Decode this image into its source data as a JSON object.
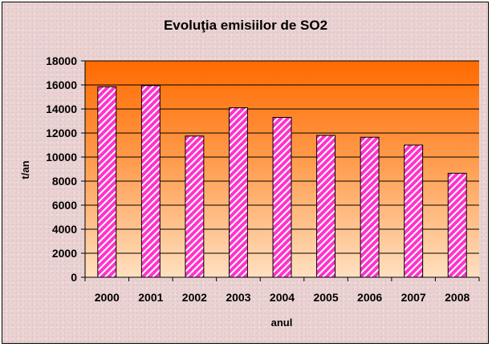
{
  "chart_data": {
    "type": "bar",
    "title": "Evoluţia emisiilor de SO2",
    "xlabel": "anul",
    "ylabel": "t/an",
    "categories": [
      "2000",
      "2001",
      "2002",
      "2003",
      "2004",
      "2005",
      "2006",
      "2007",
      "2008"
    ],
    "values": [
      15850,
      15950,
      11750,
      14100,
      13300,
      11800,
      11650,
      11000,
      8650
    ],
    "ylim": [
      0,
      18000
    ],
    "yticks": [
      0,
      2000,
      4000,
      6000,
      8000,
      10000,
      12000,
      14000,
      16000,
      18000
    ],
    "grid": true,
    "legend": "none",
    "colors": {
      "bar_fill": "#ff33cc",
      "bar_stripe": "#ffffff",
      "plot_top": "#ff6a00",
      "plot_bottom": "#ffe0c0",
      "chart_background": "#ead2d2",
      "gridline": "#000000"
    }
  }
}
